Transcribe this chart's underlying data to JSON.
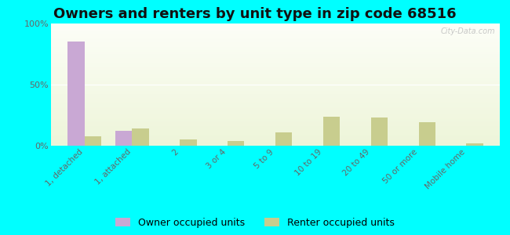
{
  "title": "Owners and renters by unit type in zip code 68516",
  "categories": [
    "1, detached",
    "1, attached",
    "2",
    "3 or 4",
    "5 to 9",
    "10 to 19",
    "20 to 49",
    "50 or more",
    "Mobile home"
  ],
  "owner_values": [
    85,
    12,
    0,
    0,
    0,
    0,
    0,
    0,
    0
  ],
  "renter_values": [
    8,
    14,
    5,
    4,
    11,
    24,
    23,
    19,
    2
  ],
  "owner_color": "#c9a8d4",
  "renter_color": "#c8cd8e",
  "outer_bg": "#00ffff",
  "ylim": [
    0,
    100
  ],
  "yticks": [
    0,
    50,
    100
  ],
  "ytick_labels": [
    "0%",
    "50%",
    "100%"
  ],
  "bar_width": 0.35,
  "legend_owner": "Owner occupied units",
  "legend_renter": "Renter occupied units",
  "title_fontsize": 13,
  "watermark": "City-Data.com"
}
